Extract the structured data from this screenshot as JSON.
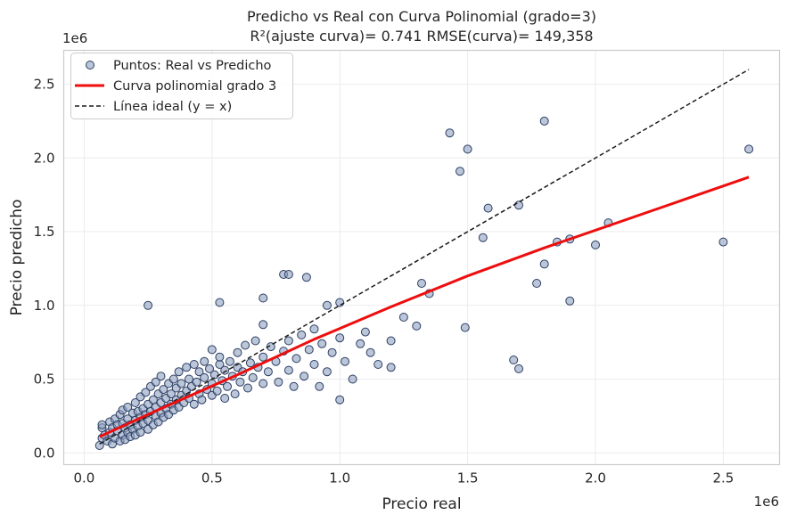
{
  "chart_data": {
    "type": "scatter",
    "title_line1": "Predicho vs Real con Curva Polinomial (grado=3)",
    "title_line2": "R²(ajuste curva)= 0.741   RMSE(curva)= 149,358",
    "xlabel": "Precio real",
    "ylabel": "Precio predicho",
    "x_offset_label": "1e6",
    "y_offset_label": "1e6",
    "xlim": [
      -0.08,
      2.72
    ],
    "ylim": [
      -0.08,
      2.73
    ],
    "x_ticks": [
      0.0,
      0.5,
      1.0,
      1.5,
      2.0,
      2.5
    ],
    "x_tick_labels": [
      "0.0",
      "0.5",
      "1.0",
      "1.5",
      "2.0",
      "2.5"
    ],
    "y_ticks": [
      0.0,
      0.5,
      1.0,
      1.5,
      2.0,
      2.5
    ],
    "y_tick_labels": [
      "0.0",
      "0.5",
      "1.0",
      "1.5",
      "2.0",
      "2.5"
    ],
    "grid": true,
    "legend_position": "top-left",
    "legend": {
      "points": "Puntos: Real vs Predicho",
      "curve": "Curva polinomial grado 3",
      "ideal": "Línea ideal (y = x)"
    },
    "colors": {
      "points_fill": "#8da0c0",
      "points_edge": "#2c3e63",
      "curve": "#ee0e0e",
      "ideal": "#1a1a1a",
      "grid": "#ebebeb",
      "frame": "#cccccc"
    },
    "series": [
      {
        "name": "Puntos: Real vs Predicho",
        "kind": "scatter",
        "points": [
          [
            0.06,
            0.05
          ],
          [
            0.07,
            0.1
          ],
          [
            0.07,
            0.17
          ],
          [
            0.07,
            0.19
          ],
          [
            0.08,
            0.12
          ],
          [
            0.09,
            0.08
          ],
          [
            0.1,
            0.14
          ],
          [
            0.1,
            0.21
          ],
          [
            0.11,
            0.06
          ],
          [
            0.11,
            0.17
          ],
          [
            0.12,
            0.1
          ],
          [
            0.12,
            0.23
          ],
          [
            0.13,
            0.15
          ],
          [
            0.13,
            0.19
          ],
          [
            0.14,
            0.08
          ],
          [
            0.14,
            0.26
          ],
          [
            0.15,
            0.12
          ],
          [
            0.15,
            0.2
          ],
          [
            0.15,
            0.29
          ],
          [
            0.16,
            0.17
          ],
          [
            0.16,
            0.09
          ],
          [
            0.17,
            0.23
          ],
          [
            0.17,
            0.14
          ],
          [
            0.17,
            0.31
          ],
          [
            0.18,
            0.19
          ],
          [
            0.18,
            0.11
          ],
          [
            0.19,
            0.27
          ],
          [
            0.19,
            0.16
          ],
          [
            0.2,
            0.22
          ],
          [
            0.2,
            0.34
          ],
          [
            0.2,
            0.12
          ],
          [
            0.21,
            0.28
          ],
          [
            0.21,
            0.18
          ],
          [
            0.22,
            0.24
          ],
          [
            0.22,
            0.38
          ],
          [
            0.22,
            0.14
          ],
          [
            0.23,
            0.3
          ],
          [
            0.23,
            0.2
          ],
          [
            0.24,
            0.26
          ],
          [
            0.24,
            0.41
          ],
          [
            0.25,
            0.16
          ],
          [
            0.25,
            0.33
          ],
          [
            0.25,
            0.22
          ],
          [
            0.26,
            0.28
          ],
          [
            0.26,
            0.45
          ],
          [
            0.27,
            0.19
          ],
          [
            0.27,
            0.36
          ],
          [
            0.28,
            0.25
          ],
          [
            0.28,
            0.31
          ],
          [
            0.28,
            0.48
          ],
          [
            0.29,
            0.21
          ],
          [
            0.29,
            0.4
          ],
          [
            0.3,
            0.27
          ],
          [
            0.3,
            0.34
          ],
          [
            0.3,
            0.52
          ],
          [
            0.31,
            0.24
          ],
          [
            0.31,
            0.43
          ],
          [
            0.32,
            0.3
          ],
          [
            0.32,
            0.37
          ],
          [
            0.33,
            0.26
          ],
          [
            0.33,
            0.47
          ],
          [
            0.34,
            0.33
          ],
          [
            0.34,
            0.4
          ],
          [
            0.35,
            0.29
          ],
          [
            0.35,
            0.5
          ],
          [
            0.36,
            0.36
          ],
          [
            0.36,
            0.44
          ],
          [
            0.37,
            0.31
          ],
          [
            0.37,
            0.55
          ],
          [
            0.38,
            0.39
          ],
          [
            0.38,
            0.47
          ],
          [
            0.39,
            0.34
          ],
          [
            0.4,
            0.42
          ],
          [
            0.4,
            0.58
          ],
          [
            0.41,
            0.37
          ],
          [
            0.41,
            0.5
          ],
          [
            0.42,
            0.45
          ],
          [
            0.43,
            0.33
          ],
          [
            0.43,
            0.6
          ],
          [
            0.44,
            0.48
          ],
          [
            0.45,
            0.4
          ],
          [
            0.45,
            0.55
          ],
          [
            0.46,
            0.36
          ],
          [
            0.47,
            0.51
          ],
          [
            0.47,
            0.62
          ],
          [
            0.48,
            0.43
          ],
          [
            0.49,
            0.57
          ],
          [
            0.5,
            0.39
          ],
          [
            0.5,
            0.47
          ],
          [
            0.5,
            0.7
          ],
          [
            0.51,
            0.53
          ],
          [
            0.52,
            0.42
          ],
          [
            0.53,
            0.6
          ],
          [
            0.53,
            0.65
          ],
          [
            0.54,
            0.49
          ],
          [
            0.55,
            0.37
          ],
          [
            0.55,
            0.56
          ],
          [
            0.56,
            0.45
          ],
          [
            0.57,
            0.62
          ],
          [
            0.58,
            0.52
          ],
          [
            0.59,
            0.4
          ],
          [
            0.6,
            0.58
          ],
          [
            0.6,
            0.68
          ],
          [
            0.61,
            0.48
          ],
          [
            0.62,
            0.55
          ],
          [
            0.63,
            0.73
          ],
          [
            0.64,
            0.44
          ],
          [
            0.65,
            0.61
          ],
          [
            0.66,
            0.51
          ],
          [
            0.67,
            0.76
          ],
          [
            0.68,
            0.58
          ],
          [
            0.7,
            0.47
          ],
          [
            0.7,
            0.65
          ],
          [
            0.7,
            0.87
          ],
          [
            0.72,
            0.55
          ],
          [
            0.73,
            0.72
          ],
          [
            0.75,
            0.62
          ],
          [
            0.76,
            0.48
          ],
          [
            0.78,
            0.69
          ],
          [
            0.8,
            0.56
          ],
          [
            0.8,
            0.76
          ],
          [
            0.82,
            0.45
          ],
          [
            0.83,
            0.64
          ],
          [
            0.85,
            0.8
          ],
          [
            0.86,
            0.52
          ],
          [
            0.88,
            0.7
          ],
          [
            0.9,
            0.6
          ],
          [
            0.9,
            0.84
          ],
          [
            0.92,
            0.45
          ],
          [
            0.93,
            0.74
          ],
          [
            0.95,
            0.55
          ],
          [
            0.97,
            0.68
          ],
          [
            1.0,
            0.78
          ],
          [
            1.0,
            0.36
          ],
          [
            1.02,
            0.62
          ],
          [
            1.05,
            0.5
          ],
          [
            1.08,
            0.74
          ],
          [
            1.1,
            0.82
          ],
          [
            1.12,
            0.68
          ],
          [
            1.15,
            0.6
          ],
          [
            1.2,
            0.58
          ],
          [
            1.2,
            0.76
          ],
          [
            1.25,
            0.92
          ],
          [
            1.3,
            0.86
          ],
          [
            1.32,
            1.15
          ],
          [
            1.35,
            1.08
          ],
          [
            0.25,
            1.0
          ],
          [
            0.53,
            1.02
          ],
          [
            0.7,
            1.05
          ],
          [
            0.78,
            1.21
          ],
          [
            0.87,
            1.19
          ],
          [
            0.8,
            1.21
          ],
          [
            0.95,
            1.0
          ],
          [
            1.0,
            1.02
          ],
          [
            1.43,
            2.17
          ],
          [
            1.47,
            1.91
          ],
          [
            1.49,
            0.85
          ],
          [
            1.5,
            2.06
          ],
          [
            1.56,
            1.46
          ],
          [
            1.58,
            1.66
          ],
          [
            1.68,
            0.63
          ],
          [
            1.7,
            0.57
          ],
          [
            1.7,
            1.68
          ],
          [
            1.77,
            1.15
          ],
          [
            1.8,
            1.28
          ],
          [
            1.8,
            2.25
          ],
          [
            1.85,
            1.43
          ],
          [
            1.9,
            1.03
          ],
          [
            1.9,
            1.45
          ],
          [
            2.0,
            1.41
          ],
          [
            2.05,
            1.56
          ],
          [
            2.5,
            1.43
          ],
          [
            2.6,
            2.06
          ]
        ]
      },
      {
        "name": "Curva polinomial grado 3",
        "kind": "line",
        "x": [
          0.06,
          0.3,
          0.6,
          0.9,
          1.2,
          1.5,
          1.8,
          2.1,
          2.4,
          2.6
        ],
        "y": [
          0.11,
          0.3,
          0.53,
          0.77,
          0.99,
          1.2,
          1.39,
          1.57,
          1.75,
          1.87
        ]
      },
      {
        "name": "Línea ideal (y = x)",
        "kind": "line",
        "x": [
          0.06,
          2.6
        ],
        "y": [
          0.06,
          2.6
        ]
      }
    ]
  }
}
